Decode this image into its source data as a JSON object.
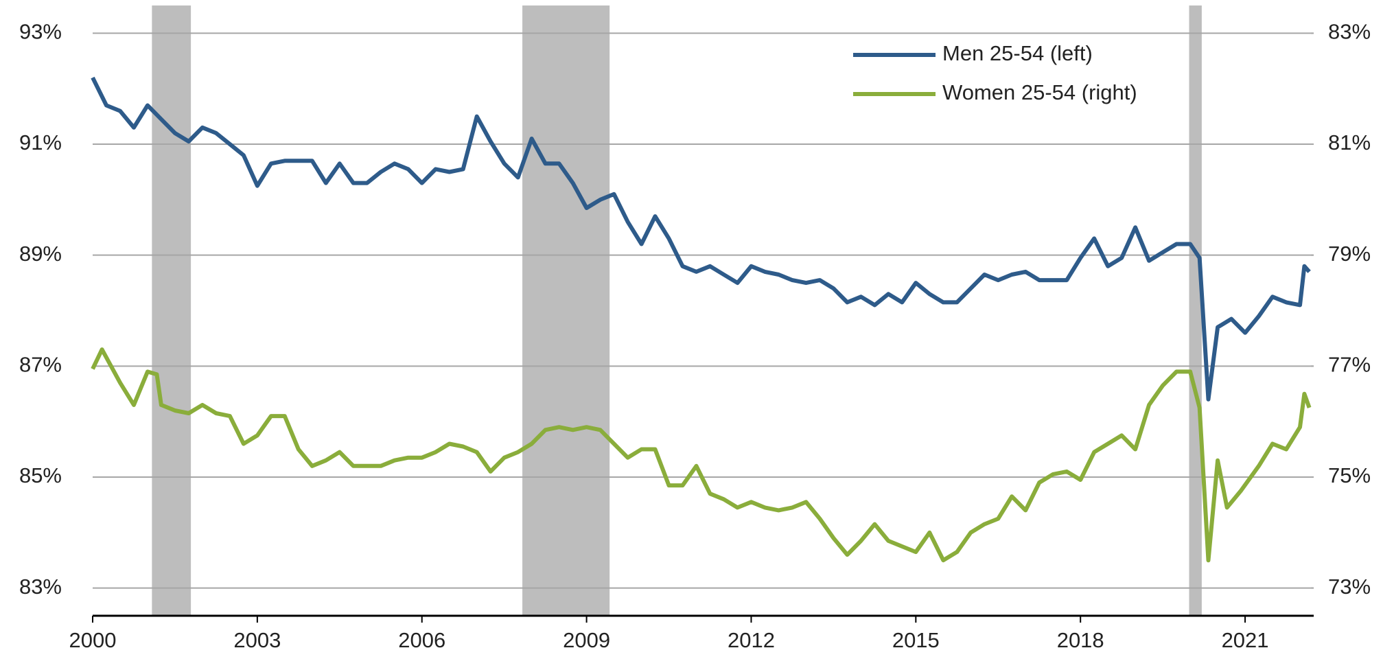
{
  "chart_data": {
    "type": "line",
    "xlim": [
      2000,
      2022.25
    ],
    "xticks": [
      2000,
      2003,
      2006,
      2009,
      2012,
      2015,
      2018,
      2021
    ],
    "ylim": [
      82.5,
      93.5
    ],
    "yticks": [
      {
        "value": 83,
        "label": "83%"
      },
      {
        "value": 85,
        "label": "85%"
      },
      {
        "value": 87,
        "label": "87%"
      },
      {
        "value": 89,
        "label": "89%"
      },
      {
        "value": 91,
        "label": "91%"
      },
      {
        "value": 93,
        "label": "93%"
      }
    ],
    "y2lim": [
      72.5,
      83.5
    ],
    "y2ticks": [
      {
        "value": 73,
        "label": "73%"
      },
      {
        "value": 75,
        "label": "75%"
      },
      {
        "value": 77,
        "label": "77%"
      },
      {
        "value": 79,
        "label": "79%"
      },
      {
        "value": 81,
        "label": "81%"
      },
      {
        "value": 83,
        "label": "83%"
      }
    ],
    "grid": true,
    "legend": "upper right",
    "recession_color": "#bdbdbd",
    "recessions": [
      [
        2001.08,
        2001.79
      ],
      [
        2007.83,
        2009.42
      ],
      [
        2019.98,
        2020.21
      ]
    ],
    "series": [
      {
        "name": "Men 25-54 (left)",
        "color": "#2e5b8a",
        "axis": "y",
        "x": [
          2000,
          2000.25,
          2000.5,
          2000.75,
          2001,
          2001.25,
          2001.5,
          2001.75,
          2002,
          2002.25,
          2002.5,
          2002.75,
          2003,
          2003.25,
          2003.5,
          2003.75,
          2004,
          2004.25,
          2004.5,
          2004.75,
          2005,
          2005.25,
          2005.5,
          2005.75,
          2006,
          2006.25,
          2006.5,
          2006.75,
          2007,
          2007.25,
          2007.5,
          2007.75,
          2008,
          2008.25,
          2008.5,
          2008.75,
          2009,
          2009.25,
          2009.5,
          2009.75,
          2010,
          2010.25,
          2010.5,
          2010.75,
          2011,
          2011.25,
          2011.5,
          2011.75,
          2012,
          2012.25,
          2012.5,
          2012.75,
          2013,
          2013.25,
          2013.5,
          2013.75,
          2014,
          2014.25,
          2014.5,
          2014.75,
          2015,
          2015.25,
          2015.5,
          2015.75,
          2016,
          2016.25,
          2016.5,
          2016.75,
          2017,
          2017.25,
          2017.5,
          2017.75,
          2018,
          2018.25,
          2018.5,
          2018.75,
          2019,
          2019.25,
          2019.5,
          2019.75,
          2020,
          2020.17,
          2020.33,
          2020.5,
          2020.75,
          2021,
          2021.25,
          2021.5,
          2021.75,
          2022,
          2022.08,
          2022.17
        ],
        "values": [
          92.2,
          91.7,
          91.6,
          91.3,
          91.7,
          91.45,
          91.2,
          91.05,
          91.3,
          91.2,
          91.0,
          90.8,
          90.25,
          90.65,
          90.7,
          90.7,
          90.7,
          90.3,
          90.65,
          90.3,
          90.3,
          90.5,
          90.65,
          90.55,
          90.3,
          90.55,
          90.5,
          90.55,
          91.5,
          91.05,
          90.65,
          90.4,
          91.1,
          90.65,
          90.65,
          90.3,
          89.85,
          90.0,
          90.1,
          89.6,
          89.2,
          89.7,
          89.3,
          88.8,
          88.7,
          88.8,
          88.65,
          88.5,
          88.8,
          88.7,
          88.65,
          88.55,
          88.5,
          88.55,
          88.4,
          88.15,
          88.25,
          88.1,
          88.3,
          88.15,
          88.5,
          88.3,
          88.15,
          88.15,
          88.4,
          88.65,
          88.55,
          88.65,
          88.7,
          88.55,
          88.55,
          88.55,
          88.95,
          89.3,
          88.8,
          88.95,
          89.5,
          88.9,
          89.05,
          89.2,
          89.2,
          88.95,
          86.4,
          87.7,
          87.85,
          87.6,
          87.9,
          88.25,
          88.15,
          88.1,
          88.8,
          88.7
        ]
      },
      {
        "name": "Women 25-54 (right)",
        "color": "#8aad3b",
        "axis": "y2",
        "x": [
          2000,
          2000.17,
          2000.5,
          2000.75,
          2001,
          2001.17,
          2001.25,
          2001.5,
          2001.75,
          2002,
          2002.25,
          2002.5,
          2002.75,
          2003,
          2003.25,
          2003.5,
          2003.75,
          2004,
          2004.25,
          2004.5,
          2004.75,
          2005,
          2005.25,
          2005.5,
          2005.75,
          2006,
          2006.25,
          2006.5,
          2006.75,
          2007,
          2007.25,
          2007.5,
          2007.75,
          2008,
          2008.25,
          2008.5,
          2008.75,
          2009,
          2009.25,
          2009.5,
          2009.75,
          2010,
          2010.25,
          2010.5,
          2010.75,
          2011,
          2011.25,
          2011.5,
          2011.75,
          2012,
          2012.25,
          2012.5,
          2012.75,
          2013,
          2013.25,
          2013.5,
          2013.75,
          2014,
          2014.25,
          2014.5,
          2014.75,
          2015,
          2015.25,
          2015.5,
          2015.75,
          2016,
          2016.25,
          2016.5,
          2016.75,
          2017,
          2017.25,
          2017.5,
          2017.75,
          2018,
          2018.25,
          2018.5,
          2018.75,
          2019,
          2019.25,
          2019.5,
          2019.75,
          2020,
          2020.17,
          2020.33,
          2020.5,
          2020.67,
          2020.92,
          2021.25,
          2021.5,
          2021.75,
          2022,
          2022.08,
          2022.17
        ],
        "values": [
          76.95,
          77.3,
          76.7,
          76.3,
          76.9,
          76.85,
          76.3,
          76.2,
          76.15,
          76.3,
          76.15,
          76.1,
          75.6,
          75.75,
          76.1,
          76.1,
          75.5,
          75.2,
          75.3,
          75.45,
          75.2,
          75.2,
          75.2,
          75.3,
          75.35,
          75.35,
          75.45,
          75.6,
          75.55,
          75.45,
          75.1,
          75.35,
          75.45,
          75.6,
          75.85,
          75.9,
          75.85,
          75.9,
          75.85,
          75.6,
          75.35,
          75.5,
          75.5,
          74.85,
          74.85,
          75.2,
          74.7,
          74.6,
          74.45,
          74.55,
          74.45,
          74.4,
          74.45,
          74.55,
          74.25,
          73.9,
          73.6,
          73.85,
          74.15,
          73.85,
          73.75,
          73.65,
          74.0,
          73.5,
          73.65,
          74.0,
          74.15,
          74.25,
          74.65,
          74.4,
          74.9,
          75.05,
          75.1,
          74.95,
          75.45,
          75.6,
          75.75,
          75.5,
          76.3,
          76.65,
          76.9,
          76.9,
          76.25,
          73.5,
          75.3,
          74.45,
          74.75,
          75.2,
          75.6,
          75.5,
          75.9,
          76.5,
          76.25
        ]
      }
    ]
  }
}
